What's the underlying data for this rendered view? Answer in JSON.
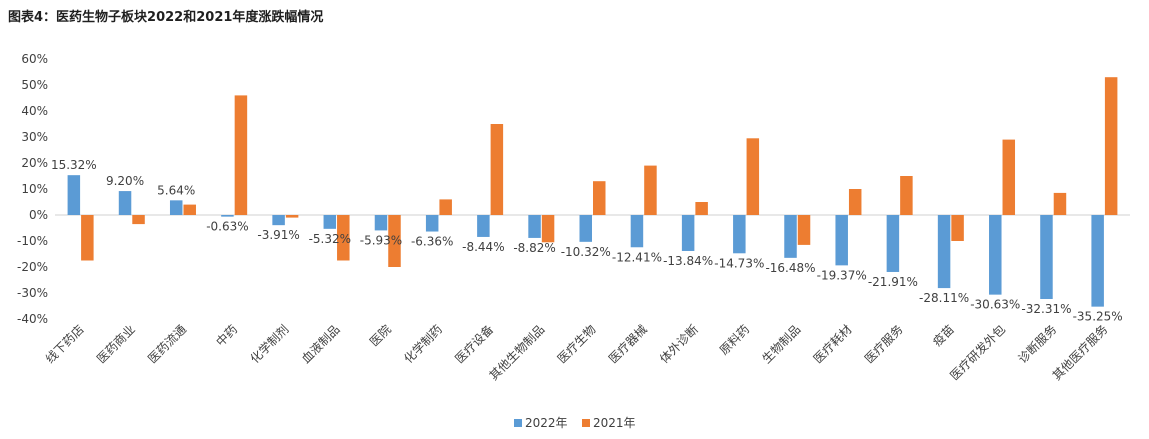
{
  "chart_data": {
    "type": "bar",
    "title": "图表4：医药生物子板块2022和2021年度涨跌幅情况",
    "categories": [
      "线下药店",
      "医药商业",
      "医药流通",
      "中药",
      "化学制剂",
      "血液制品",
      "医院",
      "化学制药",
      "医疗设备",
      "其他生物制品",
      "医疗生物",
      "医疗器械",
      "体外诊断",
      "原料药",
      "生物制品",
      "医疗耗材",
      "医疗服务",
      "疫苗",
      "医疗研发外包",
      "诊断服务",
      "其他医疗服务"
    ],
    "series": [
      {
        "name": "2022年",
        "color": "#5B9BD5",
        "values": [
          15.32,
          9.2,
          5.64,
          -0.63,
          -3.91,
          -5.32,
          -5.93,
          -6.36,
          -8.44,
          -8.82,
          -10.32,
          -12.41,
          -13.84,
          -14.73,
          -16.48,
          -19.37,
          -21.91,
          -28.11,
          -30.63,
          -32.31,
          -35.25
        ],
        "labels": [
          "15.32%",
          "9.20%",
          "5.64%",
          "-0.63%",
          "-3.91%",
          "-5.32%",
          "-5.93%",
          "-6.36%",
          "-8.44%",
          "-8.82%",
          "-10.32%",
          "-12.41%",
          "-13.84%",
          "-14.73%",
          "-16.48%",
          "-19.37%",
          "-21.91%",
          "-28.11%",
          "-30.63%",
          "-32.31%",
          "-35.25%"
        ]
      },
      {
        "name": "2021年",
        "color": "#ED7D31",
        "values": [
          -17.5,
          -3.5,
          4.0,
          46.0,
          -1.0,
          -17.5,
          -20.0,
          6.0,
          35.0,
          -10.5,
          13.0,
          19.0,
          5.0,
          29.5,
          -11.5,
          10.0,
          15.0,
          -10.0,
          29.0,
          8.5,
          53.0
        ]
      }
    ],
    "ylim": [
      -40,
      60
    ],
    "yticks": [
      60,
      50,
      40,
      30,
      20,
      10,
      0,
      -10,
      -20,
      -30,
      -40
    ],
    "ytick_labels": [
      "60%",
      "50%",
      "40%",
      "30%",
      "20%",
      "10%",
      "0%",
      "-10%",
      "-20%",
      "-30%",
      "-40%"
    ],
    "legend": {
      "position": "bottom-center",
      "entries": [
        "2022年",
        "2021年"
      ]
    },
    "grid": false
  }
}
